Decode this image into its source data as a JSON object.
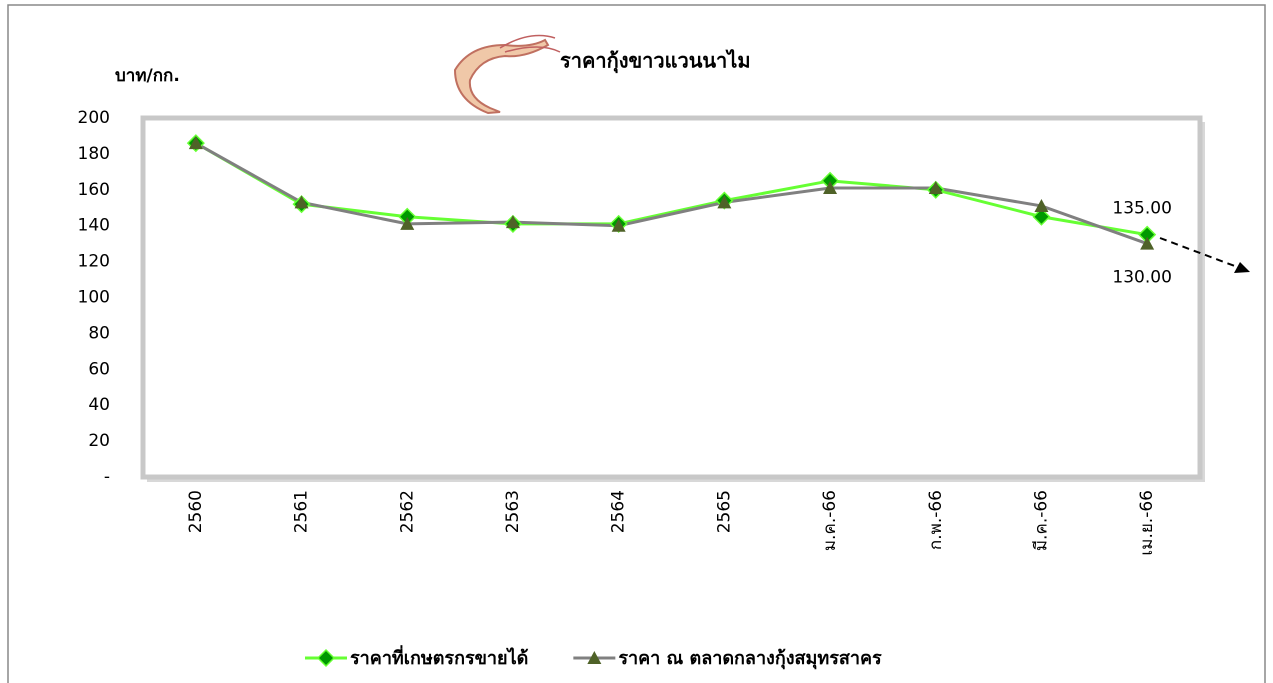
{
  "chart_data": {
    "type": "line",
    "title": "ราคากุ้งขาวแวนนาไม",
    "y_label": "บาท/กก.",
    "categories": [
      "2560",
      "2561",
      "2562",
      "2563",
      "2564",
      "2565",
      "ม.ค.-66",
      "ก.พ.-66",
      "มี.ค.-66",
      "เม.ย.-66"
    ],
    "series": [
      {
        "name": "ราคาที่เกษตรกรขายได้",
        "color": "#66ff33",
        "marker": "diamond",
        "marker_color": "#009900",
        "values": [
          186,
          152,
          145,
          141,
          141,
          154,
          165,
          160,
          145,
          135
        ],
        "value_labels": [
          null,
          null,
          null,
          null,
          null,
          null,
          null,
          null,
          null,
          "135.00"
        ]
      },
      {
        "name": "ราคา ณ ตลาดกลางกุ้งสมุทรสาคร",
        "color": "#808080",
        "marker": "triangle",
        "marker_color": "#4f6228",
        "values": [
          186,
          153,
          141,
          142,
          140,
          153,
          161,
          161,
          151,
          130
        ],
        "value_labels": [
          null,
          null,
          null,
          null,
          null,
          null,
          null,
          null,
          null,
          "130.00"
        ]
      }
    ],
    "ylim": [
      0,
      200
    ],
    "yticks": [
      {
        "value": 0,
        "label": "-"
      },
      20,
      40,
      60,
      80,
      100,
      120,
      140,
      160,
      180,
      200
    ],
    "legend": "bottom"
  }
}
